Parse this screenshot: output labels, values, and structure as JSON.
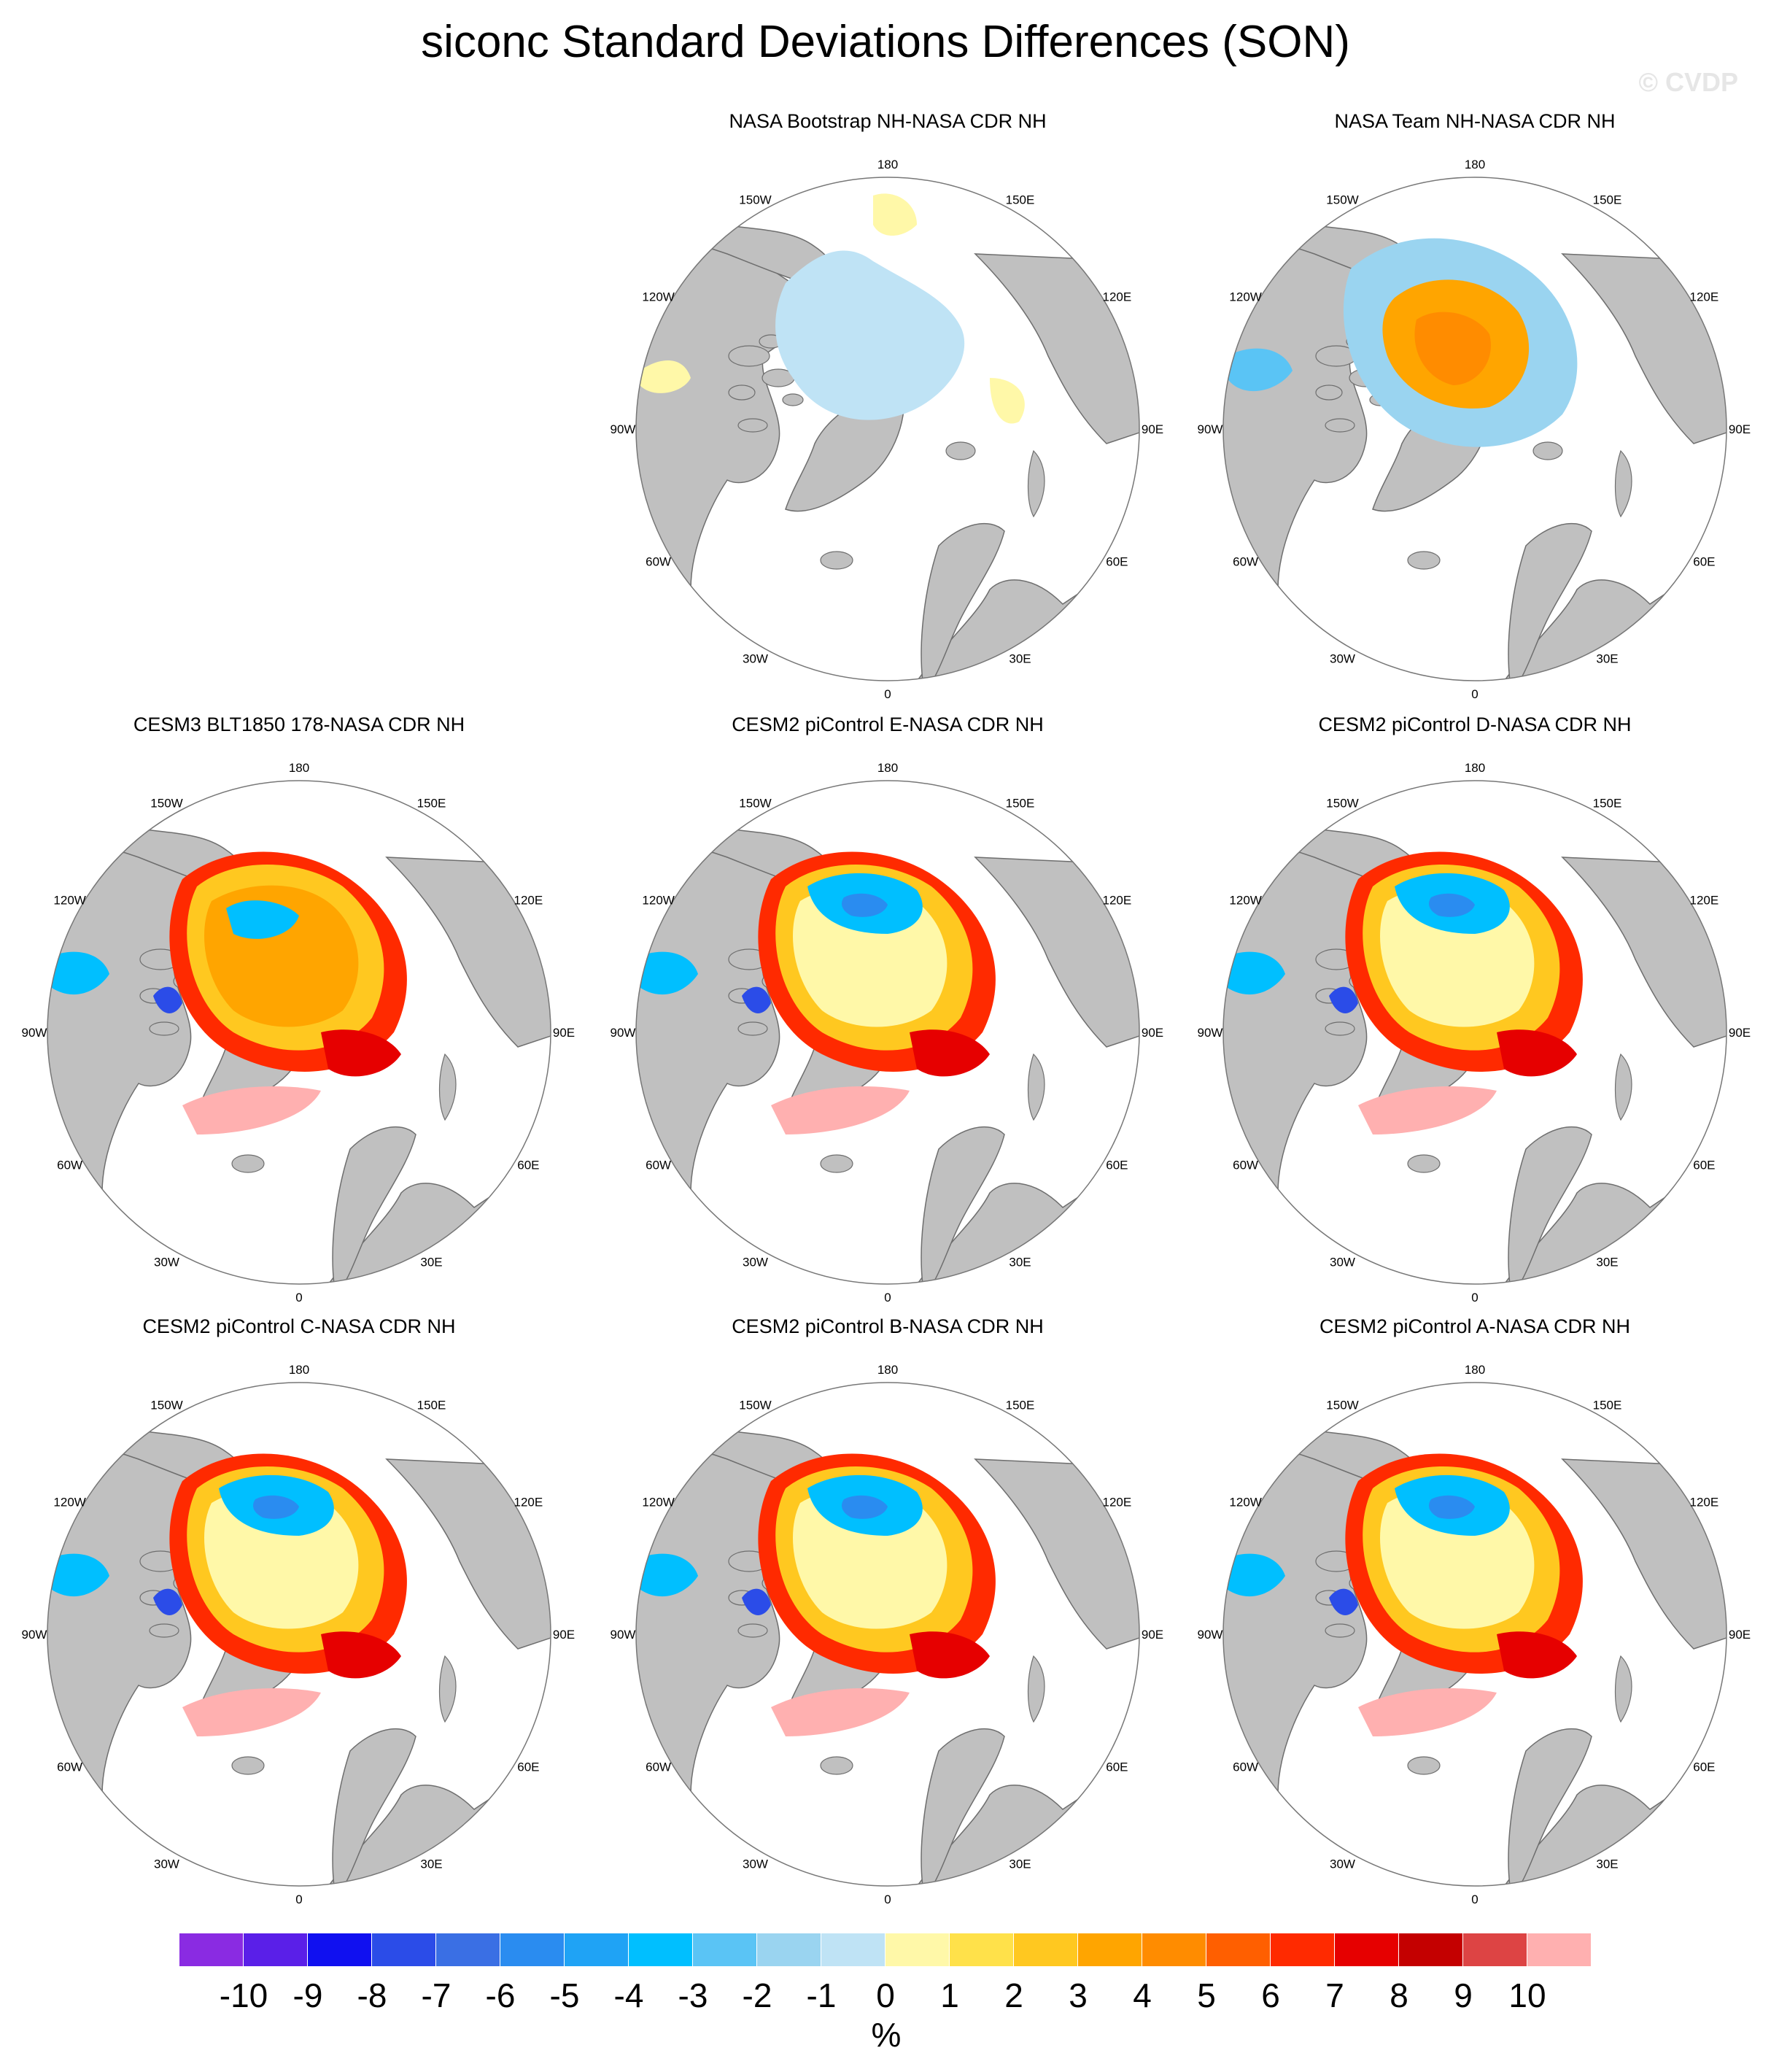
{
  "title": "siconc Standard Deviations Differences (SON)",
  "watermark": "© CVDP",
  "lon_labels": [
    "180",
    "150E",
    "120E",
    "90E",
    "60E",
    "30E",
    "0",
    "30W",
    "60W",
    "90W",
    "120W",
    "150W"
  ],
  "panels": [
    {
      "title": "NASA Bootstrap NH-NASA CDR NH",
      "style": "bootstrap"
    },
    {
      "title": "NASA Team NH-NASA CDR NH",
      "style": "team"
    },
    {
      "title": "CESM3 BLT1850 178-NASA CDR NH",
      "style": "cesm3"
    },
    {
      "title": "CESM2 piControl E-NASA CDR NH",
      "style": "cesm2"
    },
    {
      "title": "CESM2 piControl D-NASA CDR NH",
      "style": "cesm2"
    },
    {
      "title": "CESM2 piControl C-NASA CDR NH",
      "style": "cesm2"
    },
    {
      "title": "CESM2 piControl B-NASA CDR NH",
      "style": "cesm2"
    },
    {
      "title": "CESM2 piControl A-NASA CDR NH",
      "style": "cesm2"
    }
  ],
  "colorbar": {
    "colors": [
      "#8a2be2",
      "#5a1fe8",
      "#1010f0",
      "#2b4ce8",
      "#3a6fe4",
      "#2a8cf0",
      "#1fa3f5",
      "#00bfff",
      "#5ac4f5",
      "#9ad4f0",
      "#bfe3f5",
      "#fff8a8",
      "#ffe14a",
      "#ffc820",
      "#ffa500",
      "#ff8c00",
      "#ff5f00",
      "#ff2a00",
      "#e60000",
      "#c40000",
      "#dd4444",
      "#ffb0b0"
    ],
    "ticks": [
      "-10",
      "-9",
      "-8",
      "-7",
      "-6",
      "-5",
      "-4",
      "-3",
      "-2",
      "-1",
      "0",
      "1",
      "2",
      "3",
      "4",
      "5",
      "6",
      "7",
      "8",
      "9",
      "10"
    ],
    "unit": "%"
  }
}
